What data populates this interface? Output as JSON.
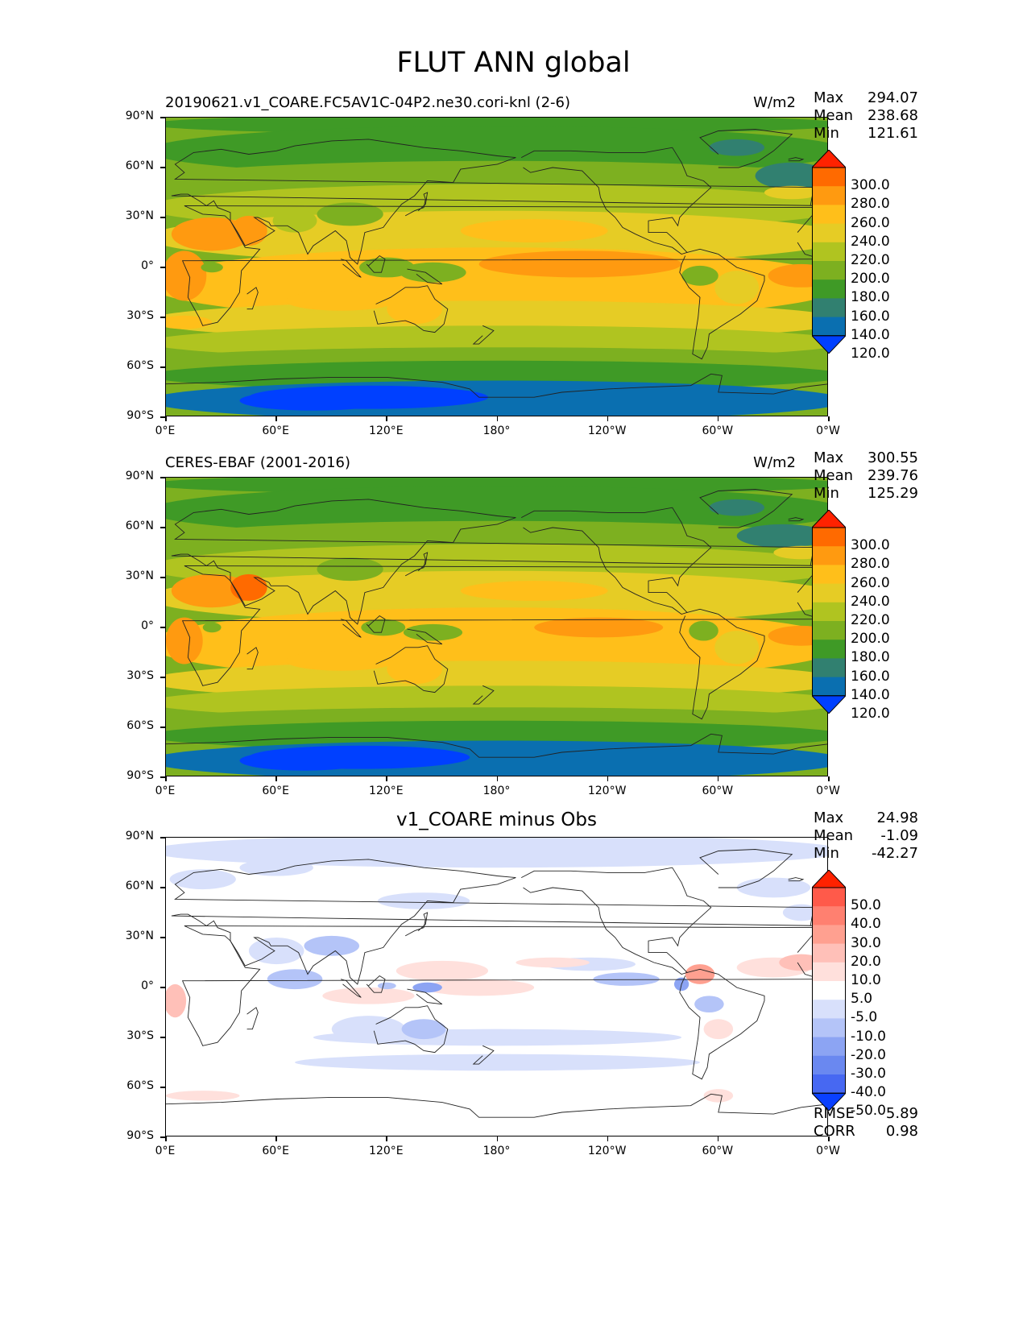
{
  "title": "FLUT ANN global",
  "panels": [
    {
      "id": "test",
      "title": "20190621.v1_COARE.FC5AV1C-04P2.ne30.cori-knl (2-6)",
      "units": "W/m2",
      "stats": [
        {
          "label": "Max",
          "value": "294.07"
        },
        {
          "label": "Mean",
          "value": "238.68"
        },
        {
          "label": "Min",
          "value": "121.61"
        }
      ]
    },
    {
      "id": "ref",
      "title": "CERES-EBAF (2001-2016)",
      "units": "W/m2",
      "stats": [
        {
          "label": "Max",
          "value": "300.55"
        },
        {
          "label": "Mean",
          "value": "239.76"
        },
        {
          "label": "Min",
          "value": "125.29"
        }
      ]
    },
    {
      "id": "diff",
      "title": "v1_COARE minus Obs",
      "units": "",
      "stats": [
        {
          "label": "Max",
          "value": "24.98"
        },
        {
          "label": "Mean",
          "value": "-1.09"
        },
        {
          "label": "Min",
          "value": "-42.27"
        }
      ],
      "metrics": [
        {
          "label": "RMSE",
          "value": "5.89"
        },
        {
          "label": "CORR",
          "value": "0.98"
        }
      ]
    }
  ],
  "axes": {
    "lat_ticks": [
      "90°N",
      "60°N",
      "30°N",
      "0°",
      "30°S",
      "60°S",
      "90°S"
    ],
    "lon_ticks": [
      "0°E",
      "60°E",
      "120°E",
      "180°",
      "120°W",
      "60°W",
      "0°W"
    ]
  },
  "colorbar_main": {
    "labels": [
      "300.0",
      "280.0",
      "260.0",
      "240.0",
      "220.0",
      "200.0",
      "180.0",
      "160.0",
      "140.0",
      "120.0"
    ],
    "colors": [
      "#ff2200",
      "#ff6a00",
      "#ff9a10",
      "#ffbf1a",
      "#e6cc25",
      "#b0c420",
      "#7db020",
      "#3f9a26",
      "#318070",
      "#0a6fb0",
      "#0040ff"
    ]
  },
  "colorbar_diff": {
    "labels": [
      "50.0",
      "40.0",
      "30.0",
      "20.0",
      "10.0",
      "5.0",
      "-5.0",
      "-10.0",
      "-20.0",
      "-30.0",
      "-40.0",
      "-50.0"
    ],
    "colors": [
      "#ff2200",
      "#ff5a4a",
      "#ff8070",
      "#ffa090",
      "#ffc0b8",
      "#ffe0dc",
      "#ffffff",
      "#d8e0fb",
      "#b4c4f8",
      "#8ca4f3",
      "#6a88f0",
      "#4768f2",
      "#0a40ff"
    ]
  },
  "chart_data": {
    "type": "heatmap",
    "title": "FLUT ANN global",
    "maps": [
      {
        "name": "20190621.v1_COARE.FC5AV1C-04P2.ne30.cori-knl (2-6)",
        "units": "W/m2",
        "max": 294.07,
        "mean": 238.68,
        "min": 121.61,
        "levels": [
          120,
          140,
          160,
          180,
          200,
          220,
          240,
          260,
          280,
          300
        ]
      },
      {
        "name": "CERES-EBAF (2001-2016)",
        "units": "W/m2",
        "max": 300.55,
        "mean": 239.76,
        "min": 125.29,
        "levels": [
          120,
          140,
          160,
          180,
          200,
          220,
          240,
          260,
          280,
          300
        ]
      },
      {
        "name": "v1_COARE minus Obs",
        "max": 24.98,
        "mean": -1.09,
        "min": -42.27,
        "rmse": 5.89,
        "corr": 0.98,
        "levels": [
          -50,
          -40,
          -30,
          -20,
          -10,
          -5,
          5,
          10,
          20,
          30,
          40,
          50
        ]
      }
    ],
    "xlim": [
      0,
      360
    ],
    "ylim": [
      -90,
      90
    ]
  }
}
